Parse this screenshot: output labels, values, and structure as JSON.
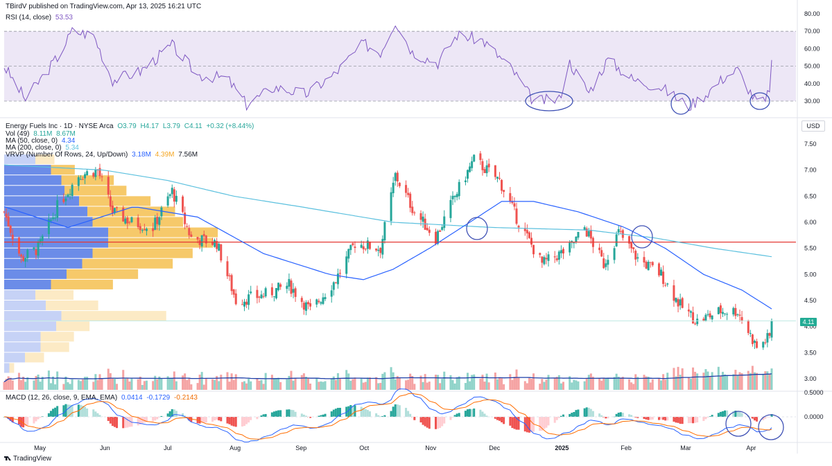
{
  "publisher": "TBirdV published on TradingView.com, Apr 13, 2025 16:21 UTC",
  "brand": "TradingView",
  "currency": "USD",
  "colors": {
    "up": "#26a69a",
    "down": "#ef5350",
    "rsi": "#7e57c2",
    "rsi_band": "#ede7f6",
    "ma50": "#2962ff",
    "ma200": "#5bc0de",
    "resistance": "#e53935",
    "vol_up": "#8fd3c9",
    "vol_down": "#f5a3a3",
    "vp_up": "#5b7fe6",
    "vp_down": "#f5c35a",
    "annotation": "#3f51b5"
  },
  "rsi_panel": {
    "label": "RSI (14, close)",
    "value": "53.53",
    "ticks": [
      "80.00",
      "70.00",
      "60.00",
      "50.00",
      "40.00",
      "30.00"
    ]
  },
  "price_panel": {
    "symbol_line": {
      "name": "Energy Fuels Inc · 1D · NYSE Arca",
      "o": "O3.79",
      "h": "H4.17",
      "l": "L3.79",
      "c": "C4.11",
      "chg": "+0.32 (+8.44%)"
    },
    "vol_line": {
      "label": "Vol (49)",
      "v1": "8.11M",
      "v2": "8.67M"
    },
    "ma50_line": {
      "label": "MA (50, close, 0)",
      "value": "4.34"
    },
    "ma200_line": {
      "label": "MA (200, close, 0)",
      "value": "5.34"
    },
    "vrvp_line": {
      "label": "VRVP (Number Of Rows, 24, Up/Down)",
      "up": "3.18M",
      "down": "4.39M",
      "total": "7.56M"
    },
    "last_price": "4.11",
    "ticks": [
      "7.50",
      "7.00",
      "6.50",
      "6.00",
      "5.50",
      "5.00",
      "4.50",
      "4.00",
      "3.50",
      "3.00"
    ]
  },
  "macd_panel": {
    "label": "MACD (12, 26, close, 9, EMA, EMA)",
    "hist": "0.0414",
    "macd": "-0.1729",
    "signal": "-0.2143",
    "ticks": [
      "0.5000",
      "0.0000"
    ]
  },
  "x_axis": [
    "May",
    "Jun",
    "Jul",
    "Aug",
    "Sep",
    "Oct",
    "Nov",
    "Dec",
    "2025",
    "Feb",
    "Mar",
    "Apr"
  ],
  "chart_data": {
    "type": "candlestick",
    "ticker": "Energy Fuels Inc",
    "timeframe": "1D",
    "ylim": [
      2.8,
      7.8
    ],
    "close_anchors": [
      {
        "date": "2024-04-15",
        "close": 6.2
      },
      {
        "date": "2024-04-23",
        "close": 5.3
      },
      {
        "date": "2024-05-01",
        "close": 5.5
      },
      {
        "date": "2024-05-10",
        "close": 6.3
      },
      {
        "date": "2024-05-20",
        "close": 6.9
      },
      {
        "date": "2024-05-29",
        "close": 7.0
      },
      {
        "date": "2024-06-05",
        "close": 6.2
      },
      {
        "date": "2024-06-14",
        "close": 6.0
      },
      {
        "date": "2024-06-24",
        "close": 5.9
      },
      {
        "date": "2024-07-03",
        "close": 6.6
      },
      {
        "date": "2024-07-12",
        "close": 5.7
      },
      {
        "date": "2024-07-24",
        "close": 5.6
      },
      {
        "date": "2024-08-02",
        "close": 4.5
      },
      {
        "date": "2024-08-15",
        "close": 4.6
      },
      {
        "date": "2024-08-27",
        "close": 4.8
      },
      {
        "date": "2024-09-06",
        "close": 4.3
      },
      {
        "date": "2024-09-18",
        "close": 4.9
      },
      {
        "date": "2024-09-27",
        "close": 5.6
      },
      {
        "date": "2024-10-09",
        "close": 5.5
      },
      {
        "date": "2024-10-16",
        "close": 6.9
      },
      {
        "date": "2024-10-25",
        "close": 6.2
      },
      {
        "date": "2024-11-04",
        "close": 5.7
      },
      {
        "date": "2024-11-13",
        "close": 6.5
      },
      {
        "date": "2024-11-22",
        "close": 7.2
      },
      {
        "date": "2024-12-04",
        "close": 6.8
      },
      {
        "date": "2024-12-13",
        "close": 6.0
      },
      {
        "date": "2024-12-24",
        "close": 5.2
      },
      {
        "date": "2025-01-06",
        "close": 5.5
      },
      {
        "date": "2025-01-13",
        "close": 5.9
      },
      {
        "date": "2025-01-22",
        "close": 5.2
      },
      {
        "date": "2025-01-29",
        "close": 5.8
      },
      {
        "date": "2025-02-07",
        "close": 5.3
      },
      {
        "date": "2025-02-18",
        "close": 5.0
      },
      {
        "date": "2025-02-27",
        "close": 4.4
      },
      {
        "date": "2025-03-07",
        "close": 4.1
      },
      {
        "date": "2025-03-18",
        "close": 4.3
      },
      {
        "date": "2025-03-26",
        "close": 4.3
      },
      {
        "date": "2025-04-04",
        "close": 3.6
      },
      {
        "date": "2025-04-10",
        "close": 3.8
      },
      {
        "date": "2025-04-11",
        "close": 4.11
      }
    ],
    "ma50_anchors": [
      {
        "date": "2024-04-15",
        "value": 6.3
      },
      {
        "date": "2024-05-15",
        "value": 5.9
      },
      {
        "date": "2024-06-15",
        "value": 6.3
      },
      {
        "date": "2024-07-15",
        "value": 6.1
      },
      {
        "date": "2024-08-15",
        "value": 5.4
      },
      {
        "date": "2024-09-15",
        "value": 5.0
      },
      {
        "date": "2024-10-01",
        "value": 4.9
      },
      {
        "date": "2024-10-15",
        "value": 5.1
      },
      {
        "date": "2024-11-01",
        "value": 5.5
      },
      {
        "date": "2024-11-20",
        "value": 6.0
      },
      {
        "date": "2024-12-05",
        "value": 6.4
      },
      {
        "date": "2024-12-20",
        "value": 6.4
      },
      {
        "date": "2025-01-10",
        "value": 6.2
      },
      {
        "date": "2025-02-01",
        "value": 5.9
      },
      {
        "date": "2025-02-20",
        "value": 5.5
      },
      {
        "date": "2025-03-10",
        "value": 5.0
      },
      {
        "date": "2025-03-28",
        "value": 4.7
      },
      {
        "date": "2025-04-11",
        "value": 4.34
      }
    ],
    "ma200_anchors": [
      {
        "date": "2024-04-15",
        "value": 7.1
      },
      {
        "date": "2024-06-01",
        "value": 7.0
      },
      {
        "date": "2024-07-01",
        "value": 6.8
      },
      {
        "date": "2024-08-01",
        "value": 6.5
      },
      {
        "date": "2024-09-01",
        "value": 6.3
      },
      {
        "date": "2024-10-15",
        "value": 6.0
      },
      {
        "date": "2024-12-01",
        "value": 5.9
      },
      {
        "date": "2025-01-15",
        "value": 5.85
      },
      {
        "date": "2025-02-15",
        "value": 5.7
      },
      {
        "date": "2025-03-15",
        "value": 5.5
      },
      {
        "date": "2025-04-11",
        "value": 5.34
      }
    ],
    "resistance_level": 5.62,
    "rsi_anchors": [
      {
        "date": "2024-04-15",
        "value": 50
      },
      {
        "date": "2024-04-25",
        "value": 31
      },
      {
        "date": "2024-05-10",
        "value": 55
      },
      {
        "date": "2024-05-17",
        "value": 70
      },
      {
        "date": "2024-05-27",
        "value": 68
      },
      {
        "date": "2024-06-05",
        "value": 42
      },
      {
        "date": "2024-06-18",
        "value": 47
      },
      {
        "date": "2024-07-03",
        "value": 62
      },
      {
        "date": "2024-07-15",
        "value": 45
      },
      {
        "date": "2024-07-29",
        "value": 43
      },
      {
        "date": "2024-08-07",
        "value": 28
      },
      {
        "date": "2024-08-20",
        "value": 38
      },
      {
        "date": "2024-09-04",
        "value": 34
      },
      {
        "date": "2024-09-17",
        "value": 45
      },
      {
        "date": "2024-10-01",
        "value": 63
      },
      {
        "date": "2024-10-09",
        "value": 58
      },
      {
        "date": "2024-10-16",
        "value": 76
      },
      {
        "date": "2024-10-24",
        "value": 58
      },
      {
        "date": "2024-11-05",
        "value": 52
      },
      {
        "date": "2024-11-14",
        "value": 68
      },
      {
        "date": "2024-11-26",
        "value": 65
      },
      {
        "date": "2024-12-10",
        "value": 48
      },
      {
        "date": "2024-12-20",
        "value": 30
      },
      {
        "date": "2025-01-01",
        "value": 31
      },
      {
        "date": "2025-01-06",
        "value": 52
      },
      {
        "date": "2025-01-15",
        "value": 35
      },
      {
        "date": "2025-01-24",
        "value": 54
      },
      {
        "date": "2025-02-05",
        "value": 42
      },
      {
        "date": "2025-02-18",
        "value": 38
      },
      {
        "date": "2025-03-03",
        "value": 27
      },
      {
        "date": "2025-03-10",
        "value": 33
      },
      {
        "date": "2025-03-20",
        "value": 44
      },
      {
        "date": "2025-03-26",
        "value": 48
      },
      {
        "date": "2025-04-03",
        "value": 31
      },
      {
        "date": "2025-04-08",
        "value": 29
      },
      {
        "date": "2025-04-10",
        "value": 38
      },
      {
        "date": "2025-04-11",
        "value": 53.53
      }
    ],
    "volume_profile_rows": [
      {
        "price": 7.2,
        "up": 0.3,
        "down": 0.2
      },
      {
        "price": 7.0,
        "up": 0.45,
        "down": 0.25
      },
      {
        "price": 6.8,
        "up": 0.55,
        "down": 0.55
      },
      {
        "price": 6.6,
        "up": 0.58,
        "down": 0.65
      },
      {
        "price": 6.4,
        "up": 0.72,
        "down": 0.75
      },
      {
        "price": 6.2,
        "up": 0.8,
        "down": 0.92
      },
      {
        "price": 6.0,
        "up": 0.85,
        "down": 0.95
      },
      {
        "price": 5.8,
        "up": 1.0,
        "down": 1.15
      },
      {
        "price": 5.6,
        "up": 1.0,
        "down": 1.1
      },
      {
        "price": 5.4,
        "up": 0.85,
        "down": 1.05
      },
      {
        "price": 5.2,
        "up": 0.75,
        "down": 0.95
      },
      {
        "price": 5.0,
        "up": 0.6,
        "down": 0.75
      },
      {
        "price": 4.8,
        "up": 0.45,
        "down": 0.65
      },
      {
        "price": 4.6,
        "up": 0.3,
        "down": 0.4
      },
      {
        "price": 4.4,
        "up": 0.4,
        "down": 0.55
      },
      {
        "price": 4.2,
        "up": 0.55,
        "down": 1.1
      },
      {
        "price": 4.0,
        "up": 0.5,
        "down": 0.35
      },
      {
        "price": 3.8,
        "up": 0.35,
        "down": 0.35
      },
      {
        "price": 3.6,
        "up": 0.35,
        "down": 0.3
      },
      {
        "price": 3.4,
        "up": 0.2,
        "down": 0.2
      },
      {
        "price": 3.2,
        "up": 0.05,
        "down": 0.05
      }
    ],
    "annotations": [
      {
        "panel": "rsi",
        "date": "2024-12-20",
        "note": "oversold"
      },
      {
        "panel": "rsi",
        "date": "2025-03-03",
        "note": "oversold"
      },
      {
        "panel": "rsi",
        "date": "2025-04-08",
        "note": "oversold"
      },
      {
        "panel": "price",
        "date": "2024-11-18",
        "note": "MA cross"
      },
      {
        "panel": "price",
        "date": "2025-02-10",
        "note": "MA cross"
      },
      {
        "panel": "macd",
        "date": "2025-03-31",
        "note": "MACD cross"
      },
      {
        "panel": "macd",
        "date": "2025-04-11",
        "note": "MACD cross"
      }
    ]
  }
}
